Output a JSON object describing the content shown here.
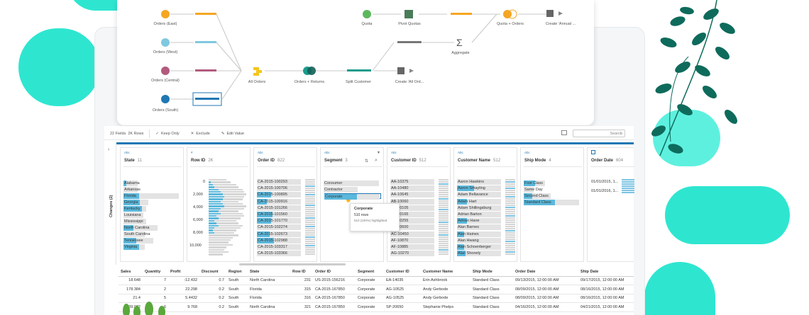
{
  "colors": {
    "accent": "#1f77b4",
    "teal": "#2ee6d0",
    "leaf": "#0e6b5c",
    "highlight": "#5bb8dc"
  },
  "flow": {
    "nodes": [
      {
        "id": "orders_east",
        "label": "Orders (East)",
        "color": "#f5a623",
        "icon": "database-icon"
      },
      {
        "id": "orders_west",
        "label": "Orders (West)",
        "color": "#7fc8e0",
        "icon": "database-icon"
      },
      {
        "id": "orders_central",
        "label": "Orders (Central)",
        "color": "#b25b7e",
        "icon": "database-icon"
      },
      {
        "id": "orders_south",
        "label": "Orders (South)",
        "color": "#1f77b4",
        "icon": "database-icon"
      },
      {
        "id": "all_orders",
        "label": "All Orders",
        "color": "#f5c518",
        "icon": "union-icon"
      },
      {
        "id": "orders_returns",
        "label": "Orders + Returns",
        "color": "#1a9c8c",
        "icon": "join-icon"
      },
      {
        "id": "split_customer",
        "label": "Split Customer",
        "color": "#1a9c8c",
        "icon": "clean-step-icon"
      },
      {
        "id": "quota",
        "label": "Quota",
        "color": "#5cb85c",
        "icon": "database-icon"
      },
      {
        "id": "pivot_quotas",
        "label": "Pivot Quotas",
        "color": "#4a7c59",
        "icon": "pivot-icon"
      },
      {
        "id": "aggregate",
        "label": "Aggregate",
        "color": "#555555",
        "icon": "sigma-icon"
      },
      {
        "id": "quota_orders",
        "label": "Quota + Orders",
        "color": "#f5a623",
        "icon": "join-icon"
      },
      {
        "id": "create_annual",
        "label": "Create 'Annual ...",
        "color": "#555555",
        "icon": "output-icon"
      },
      {
        "id": "create_all_orders",
        "label": "Create 'All Ord...",
        "color": "#555555",
        "icon": "output-icon"
      }
    ]
  },
  "toolbar": {
    "fields": "22 Fields",
    "rows": "2K Rows",
    "keep_only": "Keep Only",
    "exclude": "Exclude",
    "edit_value": "Edit Value",
    "search_placeholder": "Search"
  },
  "changes_label": "Changes (2)",
  "profile": [
    {
      "type": "Abc",
      "name": "State",
      "count": "11",
      "values": [
        "Alabama",
        "Arkansas",
        "Florida",
        "Georgia",
        "Kentucky",
        "Louisiana",
        "Mississippi",
        "North Carolina",
        "South Carolina",
        "Tennessee",
        "Virginia"
      ]
    },
    {
      "type": "#",
      "name": "Row ID",
      "count": "2K",
      "ticks": [
        "0",
        "2,000",
        "4,000",
        "6,000",
        "8,000",
        "10,000"
      ]
    },
    {
      "type": "Abc",
      "name": "Order ID",
      "count": "822",
      "values": [
        "CA-2015-100293",
        "CA-2015-100706",
        "CA-2015-100895",
        "CA-2015-100916",
        "CA-2015-101266",
        "CA-2015-101560",
        "CA-2015-101770",
        "CA-2015-102274",
        "CA-2015-102673",
        "CA-2015-102988",
        "CA-2015-103317",
        "CA-2015-103366"
      ]
    },
    {
      "type": "Abc",
      "name": "Segment",
      "count": "3",
      "values": [
        "Consumer",
        "Contractor",
        "Corporate"
      ]
    },
    {
      "type": "Abc",
      "name": "Customer ID",
      "count": "512",
      "values": [
        "AA-10375",
        "AA-10480",
        "AA-10645",
        "AB-10060",
        "AB-10105",
        "AB-10165",
        "AB-10255",
        "AB-10600",
        "AC-10450",
        "AF-10870",
        "AF-10885",
        "AG-10270"
      ]
    },
    {
      "type": "Abc",
      "name": "Customer Name",
      "count": "512",
      "values": [
        "Aaron Hawkins",
        "Aaron Smayling",
        "Adam Bellavance",
        "Adam Hart",
        "Adam Shillingsburg",
        "Adrian Barton",
        "Adrian Hane",
        "Alan Barnes",
        "Alan Haines",
        "Alan Hwang",
        "Alan Schoenberger",
        "Alan Shonely"
      ]
    },
    {
      "type": "Abc",
      "name": "Ship Mode",
      "count": "4",
      "values": [
        "First Class",
        "Same Day",
        "Second Class",
        "Standard Class"
      ]
    },
    {
      "type": "Abc",
      "name": "Order Date",
      "count": "604",
      "values": [
        "01/01/2015, 1...",
        "01/01/2016, 1..."
      ]
    }
  ],
  "tooltip": {
    "title": "Corporate",
    "rows": "510 rows",
    "note": "510 (100%) highlighted"
  },
  "grid": {
    "columns": [
      "Sales",
      "Quantity",
      "Profit",
      "Discount",
      "Region",
      "State",
      "Row ID",
      "Order ID",
      "Segment",
      "Customer ID",
      "Customer Name",
      "Ship Mode",
      "Order Date",
      "Ship Date"
    ],
    "rows": [
      [
        "18.648",
        "7",
        "-12.432",
        "0.7",
        "South",
        "North Carolina",
        "231",
        "US-2015-156216",
        "Corporate",
        "EA-14035",
        "Erin Ashbrook",
        "Standard Class",
        "09/13/2015, 12:00:00 AM",
        "09/17/2015, 12:00:00 AM"
      ],
      [
        "178.384",
        "2",
        "22.298",
        "0.2",
        "South",
        "Florida",
        "315",
        "CA-2015-167850",
        "Corporate",
        "AG-10525",
        "Andy Gerbode",
        "Standard Class",
        "08/09/2015, 12:00:00 AM",
        "08/16/2015, 12:00:00 AM"
      ],
      [
        "21.4",
        "5",
        "5.4432",
        "0.2",
        "South",
        "Florida",
        "316",
        "CA-2015-167850",
        "Corporate",
        "AG-10525",
        "Andy Gerbode",
        "Standard Class",
        "08/09/2015, 12:00:00 AM",
        "08/16/2015, 12:00:00 AM"
      ],
      [
        "39.072",
        "6",
        "9.768",
        "0.2",
        "South",
        "North Carolina",
        "321",
        "CA-2015-167850",
        "Corporate",
        "SP-20650",
        "Stephanie Phelps",
        "Standard Class",
        "04/16/2015, 12:00:00 AM",
        "04/21/2015, 12:00:00 AM"
      ]
    ]
  }
}
